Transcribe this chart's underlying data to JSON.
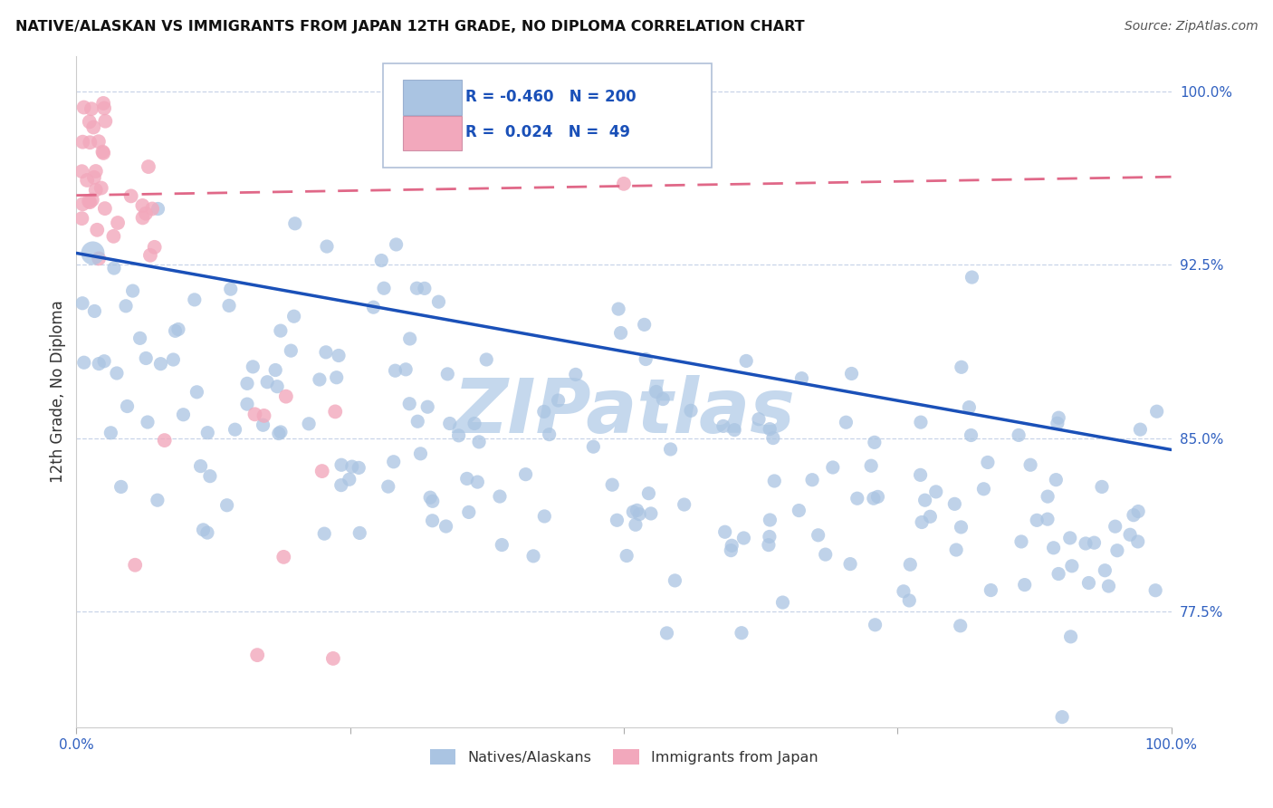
{
  "title": "NATIVE/ALASKAN VS IMMIGRANTS FROM JAPAN 12TH GRADE, NO DIPLOMA CORRELATION CHART",
  "source": "Source: ZipAtlas.com",
  "ylabel": "12th Grade, No Diploma",
  "legend_r_blue": "-0.460",
  "legend_n_blue": "200",
  "legend_r_pink": "0.024",
  "legend_n_pink": "49",
  "blue_color": "#aac4e2",
  "pink_color": "#f2a8bc",
  "blue_line_color": "#1a50b8",
  "pink_line_color": "#e06888",
  "watermark": "ZIPatlas",
  "watermark_color": "#c5d8ed",
  "background_color": "#ffffff",
  "grid_color": "#c8d4e8",
  "xlim": [
    0.0,
    1.0
  ],
  "ylim": [
    0.725,
    1.015
  ],
  "y_ticks": [
    0.775,
    0.85,
    0.925,
    1.0
  ],
  "y_tick_labels": [
    "77.5%",
    "85.0%",
    "92.5%",
    "100.0%"
  ],
  "blue_line_x0": 0.0,
  "blue_line_y0": 0.93,
  "blue_line_x1": 1.0,
  "blue_line_y1": 0.845,
  "pink_line_x0": 0.0,
  "pink_line_y0": 0.955,
  "pink_line_x1": 1.0,
  "pink_line_y1": 0.963,
  "title_fontsize": 11.5,
  "source_fontsize": 10,
  "tick_fontsize": 11,
  "legend_fontsize": 12
}
